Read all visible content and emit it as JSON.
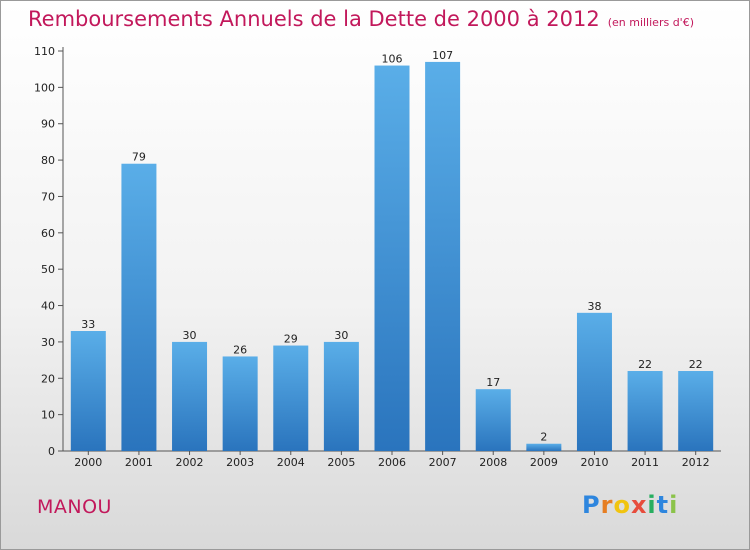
{
  "chart_data": {
    "type": "bar",
    "title": "Remboursements Annuels de la Dette de 2000 à 2012",
    "subtitle": "(en milliers d'€)",
    "categories": [
      "2000",
      "2001",
      "2002",
      "2003",
      "2004",
      "2005",
      "2006",
      "2007",
      "2008",
      "2009",
      "2010",
      "2011",
      "2012"
    ],
    "values": [
      33,
      79,
      30,
      26,
      29,
      30,
      106,
      107,
      17,
      2,
      38,
      22,
      22
    ],
    "ylim": [
      0,
      110
    ],
    "yticks": [
      0,
      10,
      20,
      30,
      40,
      50,
      60,
      70,
      80,
      90,
      100,
      110
    ],
    "xlabel": "",
    "ylabel": "",
    "grid": false,
    "bar_color": "#3d8fd9"
  },
  "footer": {
    "commune": "MANOU",
    "brand_letters": [
      {
        "ch": "P",
        "color": "#2e86de"
      },
      {
        "ch": "r",
        "color": "#e67e22"
      },
      {
        "ch": "o",
        "color": "#f1c40f"
      },
      {
        "ch": "x",
        "color": "#e74c3c"
      },
      {
        "ch": "i",
        "color": "#27ae60"
      },
      {
        "ch": "t",
        "color": "#2e86de"
      },
      {
        "ch": "i",
        "color": "#8bc34a"
      }
    ]
  }
}
